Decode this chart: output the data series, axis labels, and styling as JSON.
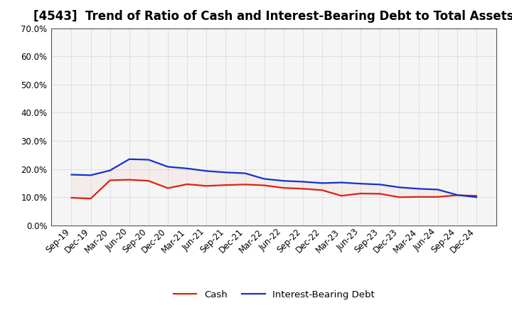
{
  "title": "[4543]  Trend of Ratio of Cash and Interest-Bearing Debt to Total Assets",
  "labels": [
    "Sep-19",
    "Dec-19",
    "Mar-20",
    "Jun-20",
    "Sep-20",
    "Dec-20",
    "Mar-21",
    "Jun-21",
    "Sep-21",
    "Dec-21",
    "Mar-22",
    "Jun-22",
    "Sep-22",
    "Dec-22",
    "Mar-23",
    "Jun-23",
    "Sep-23",
    "Dec-23",
    "Mar-24",
    "Jun-24",
    "Sep-24",
    "Dec-24"
  ],
  "cash": [
    9.8,
    9.5,
    16.0,
    16.2,
    15.8,
    13.2,
    14.6,
    14.0,
    14.3,
    14.5,
    14.2,
    13.3,
    13.0,
    12.5,
    10.5,
    11.3,
    11.2,
    10.0,
    10.1,
    10.1,
    10.7,
    10.5
  ],
  "interest_bearing_debt": [
    18.0,
    17.8,
    19.5,
    23.5,
    23.3,
    20.8,
    20.2,
    19.3,
    18.8,
    18.5,
    16.5,
    15.8,
    15.5,
    15.0,
    15.2,
    14.8,
    14.5,
    13.5,
    13.0,
    12.7,
    10.8,
    10.0
  ],
  "cash_color": "#dd2211",
  "debt_color": "#1133cc",
  "fill_between_color": "#f0c0c0",
  "ylim": [
    0,
    70
  ],
  "yticks": [
    0,
    10,
    20,
    30,
    40,
    50,
    60,
    70
  ],
  "background_color": "#ffffff",
  "plot_bg_color": "#f5f5f5",
  "grid_color": "#888888",
  "legend_cash": "Cash",
  "legend_debt": "Interest-Bearing Debt",
  "title_fontsize": 12,
  "axis_fontsize": 8.5
}
